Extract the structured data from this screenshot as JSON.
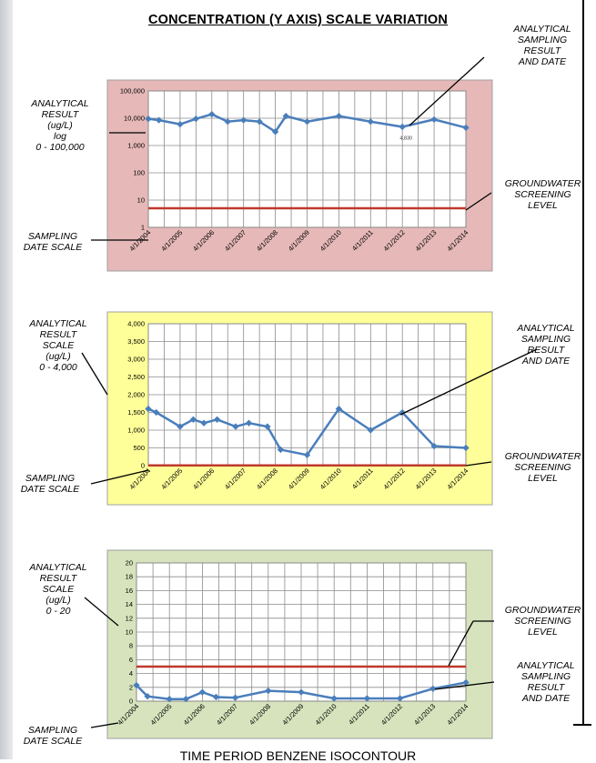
{
  "page": {
    "title": "CONCENTRATION (Y AXIS) SCALE VARIATION",
    "footer": "TIME PERIOD BENZENE ISOCONTOUR"
  },
  "annotations": {
    "top_left": "ANALYTICAL\nRESULT\n(ug/L)\nlog\n0 - 100,000",
    "top_date": "SAMPLING\nDATE SCALE",
    "top_right_sampling": "ANALYTICAL\nSAMPLING\nRESULT\nAND DATE",
    "top_right_gw": "GROUNDWATER\nSCREENING\nLEVEL",
    "mid_left": "ANALYTICAL\nRESULT\nSCALE\n(ug/L)\n0 - 4,000",
    "mid_date": "SAMPLING\nDATE SCALE",
    "mid_right_sampling": "ANALYTICAL\nSAMPLING\nRESULT\nAND DATE",
    "mid_right_gw": "GROUNDWATER\nSCREENING\nLEVEL",
    "bot_left": "ANALYTICAL\nRESULT\nSCALE\n(ug/L)\n0 - 20",
    "bot_date": "SAMPLING\nDATE SCALE",
    "bot_right_gw": "GROUNDWATER\nSCREENING\nLEVEL",
    "bot_right_sampling": "ANALYTICAL\nSAMPLING\nRESULT\nAND DATE"
  },
  "colors": {
    "series": "#4a7ebb",
    "screening": "#c0392b",
    "grid": "#8c8c8c",
    "chart1_bg": "#e6b8b8",
    "chart2_bg": "#ffff99",
    "chart3_bg": "#d6e3bc"
  },
  "chart_data": [
    {
      "type": "line",
      "y_scale": "log",
      "ylim": [
        1,
        100000
      ],
      "y_ticks": [
        "1",
        "10",
        "100",
        "1,000",
        "10,000",
        "100,000"
      ],
      "x_ticks": [
        "4/1/2004",
        "4/1/2005",
        "4/1/2006",
        "4/1/2007",
        "4/1/2008",
        "4/1/2009",
        "4/1/2010",
        "4/1/2011",
        "4/1/2012",
        "4/1/2013",
        "4/1/2014"
      ],
      "data_label": {
        "x": "2012-04-01",
        "text": "4,830"
      },
      "series": [
        {
          "role": "analytical",
          "points": [
            [
              "2004-04-01",
              9500
            ],
            [
              "2004-08-01",
              8500
            ],
            [
              "2005-04-01",
              6000
            ],
            [
              "2005-10-01",
              9500
            ],
            [
              "2006-04-01",
              14000
            ],
            [
              "2006-10-01",
              7500
            ],
            [
              "2007-04-01",
              8500
            ],
            [
              "2007-10-01",
              7500
            ],
            [
              "2008-04-01",
              3200
            ],
            [
              "2008-08-01",
              12000
            ],
            [
              "2009-04-01",
              7500
            ],
            [
              "2010-04-01",
              12000
            ],
            [
              "2011-04-01",
              7500
            ],
            [
              "2012-04-01",
              4830
            ],
            [
              "2013-04-01",
              9000
            ],
            [
              "2014-04-01",
              4500
            ]
          ]
        },
        {
          "role": "screening",
          "points": [
            [
              "2004-04-01",
              5
            ],
            [
              "2014-04-01",
              5
            ]
          ]
        }
      ]
    },
    {
      "type": "line",
      "ylim": [
        0,
        4000
      ],
      "y_ticks": [
        "0",
        "500",
        "1,000",
        "1,500",
        "2,000",
        "2,500",
        "3,000",
        "3,500",
        "4,000"
      ],
      "x_ticks": [
        "4/1/2004",
        "4/1/2005",
        "4/1/2006",
        "4/1/2007",
        "4/1/2008",
        "4/1/2009",
        "4/1/2010",
        "4/1/2011",
        "4/1/2012",
        "4/1/2013",
        "4/1/2014"
      ],
      "series": [
        {
          "role": "analytical",
          "points": [
            [
              "2004-04-01",
              1600
            ],
            [
              "2004-07-01",
              1500
            ],
            [
              "2005-04-01",
              1100
            ],
            [
              "2005-09-01",
              1300
            ],
            [
              "2006-01-01",
              1200
            ],
            [
              "2006-06-01",
              1300
            ],
            [
              "2007-01-01",
              1100
            ],
            [
              "2007-06-01",
              1200
            ],
            [
              "2008-01-01",
              1100
            ],
            [
              "2008-06-01",
              450
            ],
            [
              "2009-04-01",
              300
            ],
            [
              "2010-04-01",
              1600
            ],
            [
              "2011-04-01",
              1000
            ],
            [
              "2012-04-01",
              1500
            ],
            [
              "2013-04-01",
              550
            ],
            [
              "2014-04-01",
              500
            ]
          ]
        },
        {
          "role": "screening",
          "points": [
            [
              "2004-04-01",
              5
            ],
            [
              "2014-04-01",
              5
            ]
          ]
        }
      ]
    },
    {
      "type": "line",
      "ylim": [
        0,
        20
      ],
      "y_ticks": [
        "0",
        "2",
        "4",
        "6",
        "8",
        "10",
        "12",
        "14",
        "16",
        "18",
        "20"
      ],
      "x_ticks": [
        "4/1/2004",
        "4/1/2005",
        "4/1/2006",
        "4/1/2007",
        "4/1/2008",
        "4/1/2009",
        "4/1/2010",
        "4/1/2011",
        "4/1/2012",
        "4/1/2013",
        "4/1/2014"
      ],
      "series": [
        {
          "role": "analytical",
          "points": [
            [
              "2004-04-01",
              2.3
            ],
            [
              "2004-08-01",
              0.7
            ],
            [
              "2005-04-01",
              0.3
            ],
            [
              "2005-10-01",
              0.3
            ],
            [
              "2006-04-01",
              1.3
            ],
            [
              "2006-09-01",
              0.6
            ],
            [
              "2007-04-01",
              0.5
            ],
            [
              "2008-04-01",
              1.5
            ],
            [
              "2009-04-01",
              1.3
            ],
            [
              "2010-04-01",
              0.4
            ],
            [
              "2011-04-01",
              0.4
            ],
            [
              "2012-04-01",
              0.4
            ],
            [
              "2013-04-01",
              1.8
            ],
            [
              "2014-04-01",
              2.7
            ]
          ]
        },
        {
          "role": "screening",
          "points": [
            [
              "2004-04-01",
              5
            ],
            [
              "2014-04-01",
              5
            ]
          ]
        }
      ]
    }
  ]
}
